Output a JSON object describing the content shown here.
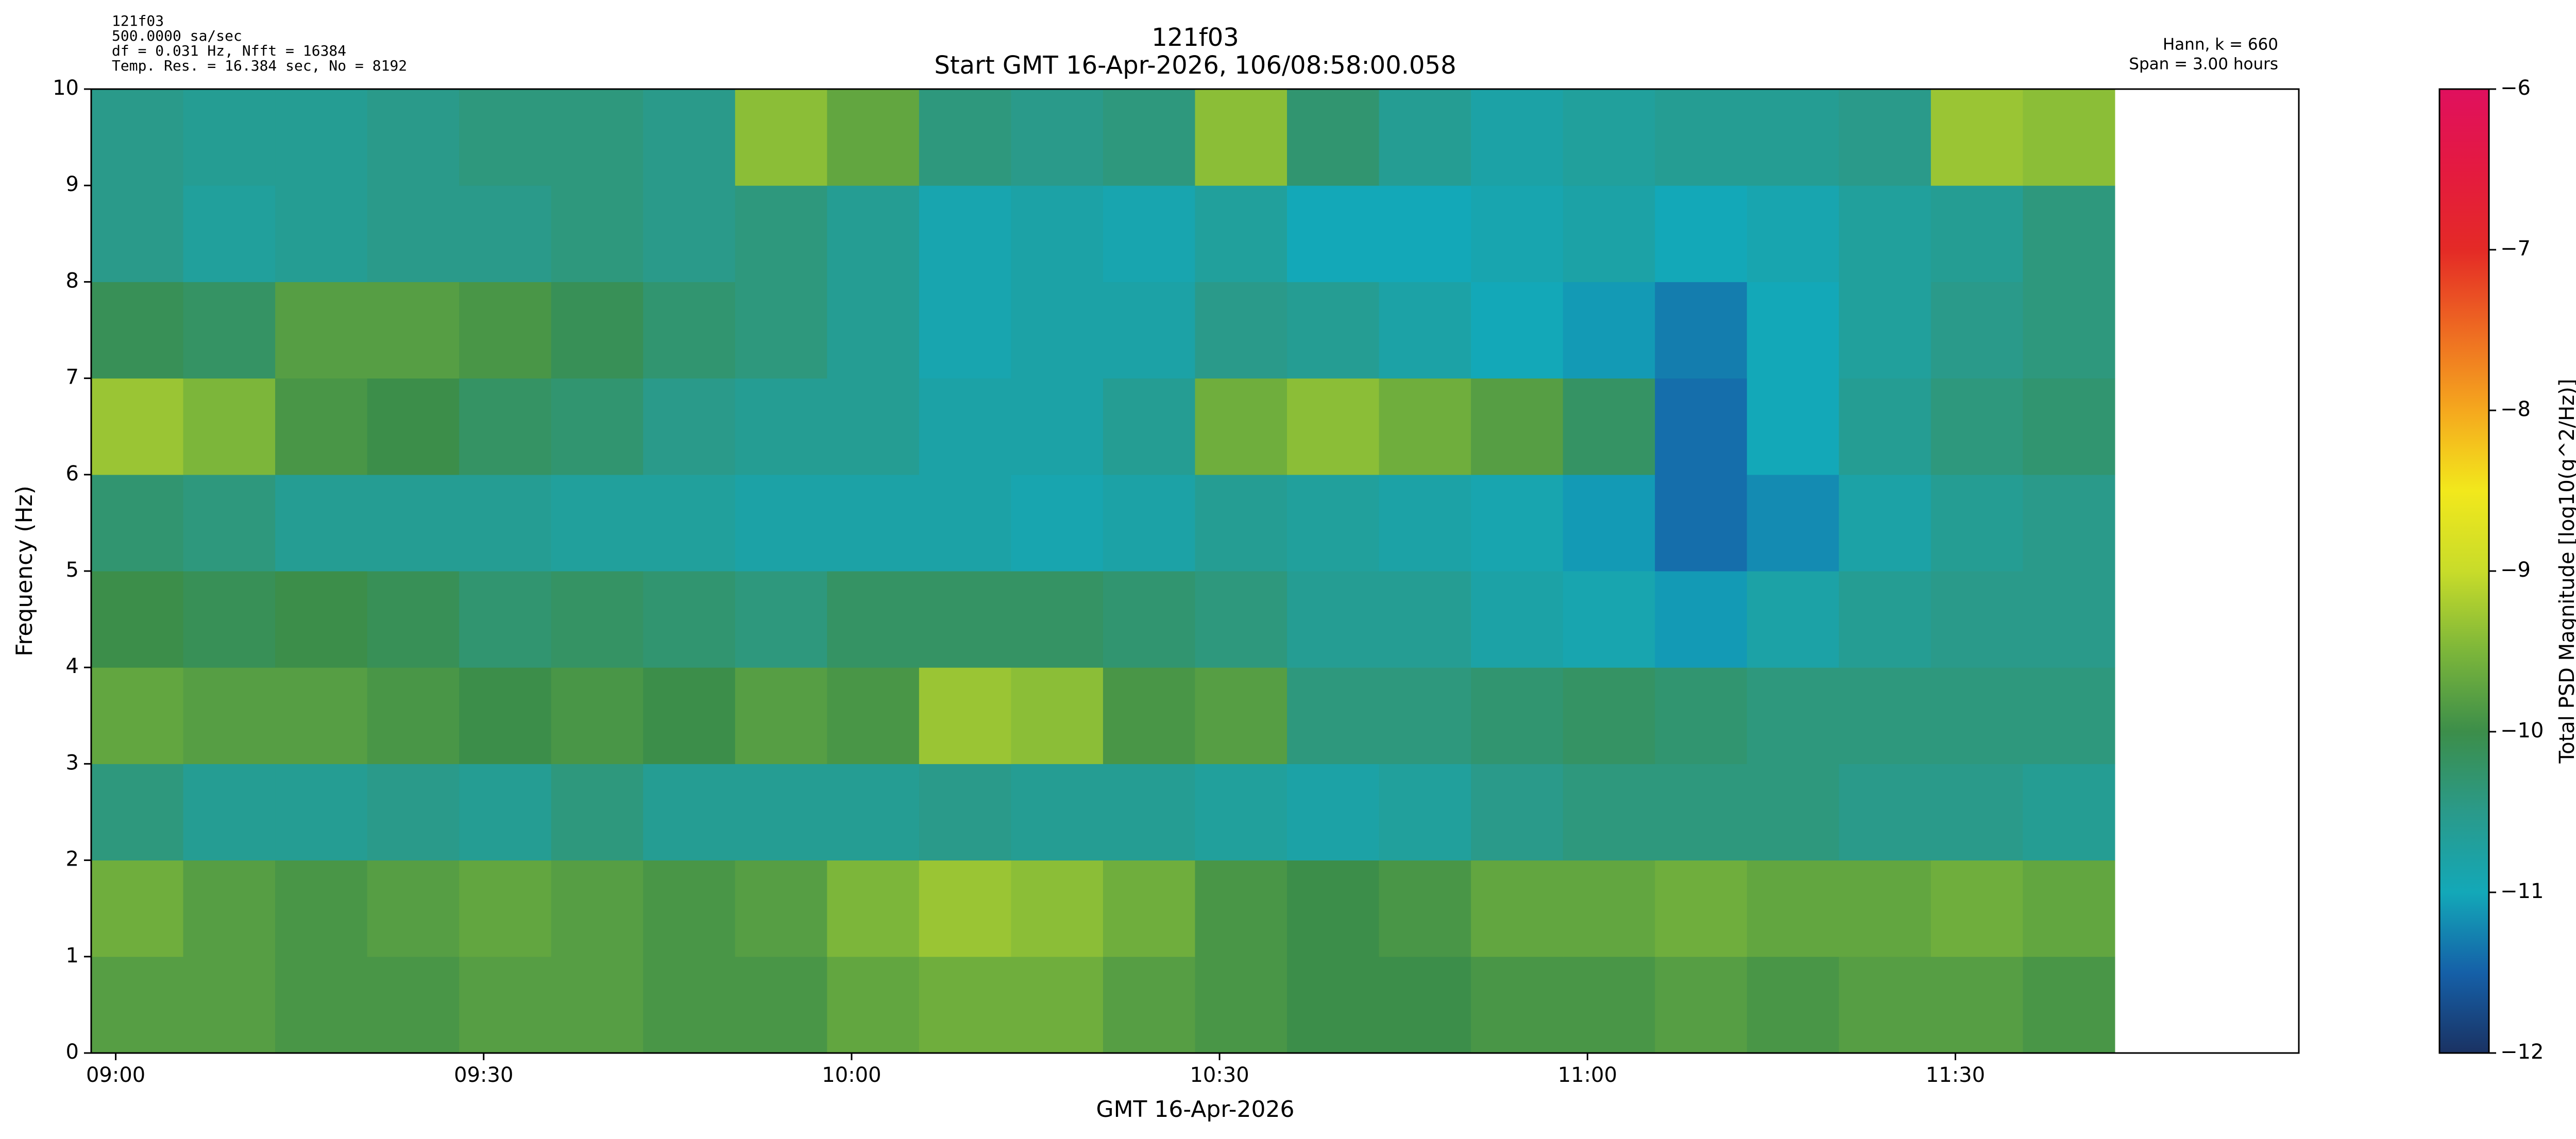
{
  "chart_data": {
    "type": "heatmap",
    "title": "121f03",
    "subtitle": "Start GMT 16-Apr-2026, 106/08:58:00.058",
    "info_left": [
      "121f03",
      "500.0000 sa/sec",
      "df = 0.031 Hz,  Nfft = 16384",
      "Temp. Res. = 16.384 sec, No = 8192"
    ],
    "info_right": [
      "Hann, k = 660",
      "Span = 3.00 hours"
    ],
    "xlabel": "GMT 16-Apr-2026",
    "ylabel": "Frequency (Hz)",
    "colorbar_label": "Total PSD Magnitude [log10(g^2/Hz)]",
    "xlim": [
      538,
      718
    ],
    "xticks": [
      {
        "value": 540,
        "label": "09:00"
      },
      {
        "value": 570,
        "label": "09:30"
      },
      {
        "value": 600,
        "label": "10:00"
      },
      {
        "value": 630,
        "label": "10:30"
      },
      {
        "value": 660,
        "label": "11:00"
      },
      {
        "value": 690,
        "label": "11:30"
      }
    ],
    "ylim": [
      0,
      10
    ],
    "yticks": [
      0,
      1,
      2,
      3,
      4,
      5,
      6,
      7,
      8,
      9,
      10
    ],
    "x_edges": [
      538,
      545.5,
      553,
      560.5,
      568,
      575.5,
      583,
      590.5,
      598,
      605.5,
      613,
      620.5,
      628,
      635.5,
      643,
      650.5,
      658,
      665.5,
      673,
      680.5,
      688,
      695.5,
      703
    ],
    "y_edges": [
      0,
      1,
      2,
      3,
      4,
      5,
      6,
      7,
      8,
      9,
      10
    ],
    "z": [
      [
        -9.8,
        -9.8,
        -9.9,
        -9.9,
        -9.8,
        -9.8,
        -9.9,
        -9.9,
        -9.7,
        -9.6,
        -9.6,
        -9.8,
        -9.9,
        -10.0,
        -10.0,
        -9.9,
        -9.9,
        -9.8,
        -9.9,
        -9.8,
        -9.8,
        -9.9
      ],
      [
        -9.6,
        -9.8,
        -9.9,
        -9.8,
        -9.7,
        -9.8,
        -9.9,
        -9.8,
        -9.5,
        -9.3,
        -9.4,
        -9.6,
        -9.9,
        -10.0,
        -9.9,
        -9.7,
        -9.7,
        -9.6,
        -9.7,
        -9.7,
        -9.6,
        -9.7
      ],
      [
        -10.4,
        -10.6,
        -10.6,
        -10.5,
        -10.6,
        -10.4,
        -10.6,
        -10.6,
        -10.6,
        -10.5,
        -10.6,
        -10.6,
        -10.7,
        -10.8,
        -10.7,
        -10.5,
        -10.4,
        -10.4,
        -10.4,
        -10.5,
        -10.5,
        -10.6
      ],
      [
        -9.7,
        -9.8,
        -9.8,
        -9.9,
        -10.0,
        -9.9,
        -10.0,
        -9.8,
        -9.9,
        -9.3,
        -9.4,
        -9.9,
        -9.8,
        -10.4,
        -10.4,
        -10.3,
        -10.2,
        -10.3,
        -10.4,
        -10.4,
        -10.4,
        -10.4
      ],
      [
        -10.0,
        -10.1,
        -10.0,
        -10.1,
        -10.3,
        -10.2,
        -10.3,
        -10.4,
        -10.2,
        -10.2,
        -10.2,
        -10.3,
        -10.4,
        -10.6,
        -10.6,
        -10.8,
        -10.9,
        -11.1,
        -10.8,
        -10.6,
        -10.5,
        -10.5
      ],
      [
        -10.3,
        -10.4,
        -10.6,
        -10.6,
        -10.6,
        -10.7,
        -10.7,
        -10.8,
        -10.8,
        -10.8,
        -10.9,
        -10.8,
        -10.6,
        -10.7,
        -10.8,
        -10.9,
        -11.1,
        -11.4,
        -11.2,
        -10.8,
        -10.6,
        -10.5
      ],
      [
        -9.3,
        -9.5,
        -9.9,
        -10.0,
        -10.2,
        -10.3,
        -10.5,
        -10.6,
        -10.6,
        -10.8,
        -10.8,
        -10.6,
        -9.6,
        -9.4,
        -9.6,
        -9.8,
        -10.2,
        -11.4,
        -11.0,
        -10.6,
        -10.4,
        -10.3
      ],
      [
        -10.1,
        -10.2,
        -9.8,
        -9.8,
        -9.9,
        -10.1,
        -10.3,
        -10.4,
        -10.6,
        -10.9,
        -10.8,
        -10.8,
        -10.5,
        -10.6,
        -10.8,
        -11.0,
        -11.1,
        -11.3,
        -11.0,
        -10.7,
        -10.5,
        -10.4
      ],
      [
        -10.5,
        -10.7,
        -10.6,
        -10.5,
        -10.5,
        -10.4,
        -10.5,
        -10.4,
        -10.6,
        -10.9,
        -10.8,
        -10.9,
        -10.7,
        -11.0,
        -11.0,
        -10.9,
        -10.8,
        -11.0,
        -10.9,
        -10.7,
        -10.6,
        -10.4
      ],
      [
        -10.5,
        -10.6,
        -10.6,
        -10.5,
        -10.4,
        -10.4,
        -10.5,
        -9.4,
        -9.7,
        -10.4,
        -10.5,
        -10.4,
        -9.4,
        -10.3,
        -10.6,
        -10.8,
        -10.7,
        -10.6,
        -10.6,
        -10.5,
        -9.3,
        -9.4
      ]
    ],
    "clim": [
      -12,
      -6
    ],
    "cticks": [
      {
        "value": -12,
        "label": "−12"
      },
      {
        "value": -11,
        "label": "−11"
      },
      {
        "value": -10,
        "label": "−10"
      },
      {
        "value": -9,
        "label": "−9"
      },
      {
        "value": -8,
        "label": "−8"
      },
      {
        "value": -7,
        "label": "−7"
      },
      {
        "value": -6,
        "label": "−6"
      }
    ],
    "colormap": [
      "#1a3263",
      "#1560a8",
      "#13a8b8",
      "#2a9a8a",
      "#3c8e4a",
      "#7cb63a",
      "#c8dc2a",
      "#f2e81c",
      "#f5a81e",
      "#ee6a22",
      "#e42a26",
      "#e41a40",
      "#e0105e"
    ],
    "title_color": "#000080"
  }
}
